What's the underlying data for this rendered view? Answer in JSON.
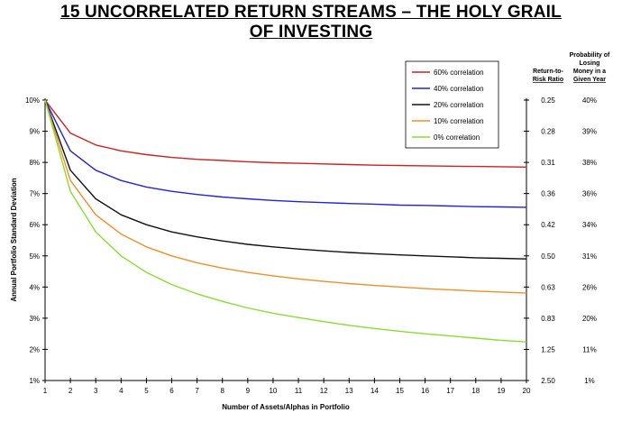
{
  "title_line1": "15 UNCORRELATED RETURN STREAMS – THE HOLY GRAIL",
  "title_line2": "OF INVESTING",
  "chart_data": {
    "type": "line",
    "title": "15 UNCORRELATED RETURN STREAMS – THE HOLY GRAIL OF INVESTING",
    "xlabel": "Number of Assets/Alphas in Portfolio",
    "ylabel": "Annual Portfolio Standard Deviation",
    "x": [
      1,
      2,
      3,
      4,
      5,
      6,
      7,
      8,
      9,
      10,
      11,
      12,
      13,
      14,
      15,
      16,
      17,
      18,
      19,
      20
    ],
    "xlim": [
      1,
      20
    ],
    "ylim": [
      1,
      10
    ],
    "y_tick_labels": [
      "1%",
      "2%",
      "3%",
      "4%",
      "5%",
      "6%",
      "7%",
      "8%",
      "9%",
      "10%"
    ],
    "x_tick_labels": [
      "1",
      "2",
      "3",
      "4",
      "5",
      "6",
      "7",
      "8",
      "9",
      "10",
      "11",
      "12",
      "13",
      "14",
      "15",
      "16",
      "17",
      "18",
      "19",
      "20"
    ],
    "grid": false,
    "legend_position": "top-right",
    "series": [
      {
        "name": "60% correlation",
        "color": "#cc2222",
        "values": [
          10.0,
          8.94,
          8.56,
          8.37,
          8.25,
          8.16,
          8.1,
          8.06,
          8.02,
          7.99,
          7.97,
          7.95,
          7.93,
          7.91,
          7.9,
          7.89,
          7.88,
          7.87,
          7.86,
          7.85
        ]
      },
      {
        "name": "40% correlation",
        "color": "#2222dd",
        "values": [
          10.0,
          8.37,
          7.75,
          7.42,
          7.21,
          7.07,
          6.97,
          6.89,
          6.83,
          6.78,
          6.74,
          6.71,
          6.68,
          6.66,
          6.63,
          6.62,
          6.6,
          6.58,
          6.57,
          6.56
        ]
      },
      {
        "name": "20% correlation",
        "color": "#111111",
        "values": [
          10.0,
          7.75,
          6.83,
          6.32,
          6.0,
          5.77,
          5.61,
          5.48,
          5.37,
          5.29,
          5.22,
          5.16,
          5.11,
          5.07,
          5.03,
          5.0,
          4.97,
          4.94,
          4.92,
          4.9
        ]
      },
      {
        "name": "10% correlation",
        "color": "#ee8f2a",
        "values": [
          10.0,
          7.42,
          6.32,
          5.7,
          5.29,
          5.0,
          4.78,
          4.61,
          4.47,
          4.36,
          4.26,
          4.18,
          4.11,
          4.05,
          4.0,
          3.95,
          3.91,
          3.87,
          3.84,
          3.81
        ]
      },
      {
        "name": "0% correlation",
        "color": "#88dd33",
        "values": [
          10.0,
          7.07,
          5.77,
          5.0,
          4.47,
          4.08,
          3.78,
          3.54,
          3.33,
          3.16,
          3.02,
          2.89,
          2.77,
          2.67,
          2.58,
          2.5,
          2.43,
          2.36,
          2.29,
          2.24
        ]
      }
    ],
    "right_table": {
      "headers": {
        "ratio": [
          "Return-to-",
          "Risk Ratio"
        ],
        "prob": [
          "Probability of",
          "Losing",
          "Money in a",
          "Given Year"
        ]
      },
      "rows": [
        {
          "y": 10,
          "ratio": "0.25",
          "prob": "40%"
        },
        {
          "y": 9,
          "ratio": "0.28",
          "prob": "39%"
        },
        {
          "y": 8,
          "ratio": "0.31",
          "prob": "38%"
        },
        {
          "y": 7,
          "ratio": "0.36",
          "prob": "36%"
        },
        {
          "y": 6,
          "ratio": "0.42",
          "prob": "34%"
        },
        {
          "y": 5,
          "ratio": "0.50",
          "prob": "31%"
        },
        {
          "y": 4,
          "ratio": "0.63",
          "prob": "26%"
        },
        {
          "y": 3,
          "ratio": "0.83",
          "prob": "20%"
        },
        {
          "y": 2,
          "ratio": "1.25",
          "prob": "11%"
        },
        {
          "y": 1,
          "ratio": "2.50",
          "prob": "1%"
        }
      ]
    }
  }
}
